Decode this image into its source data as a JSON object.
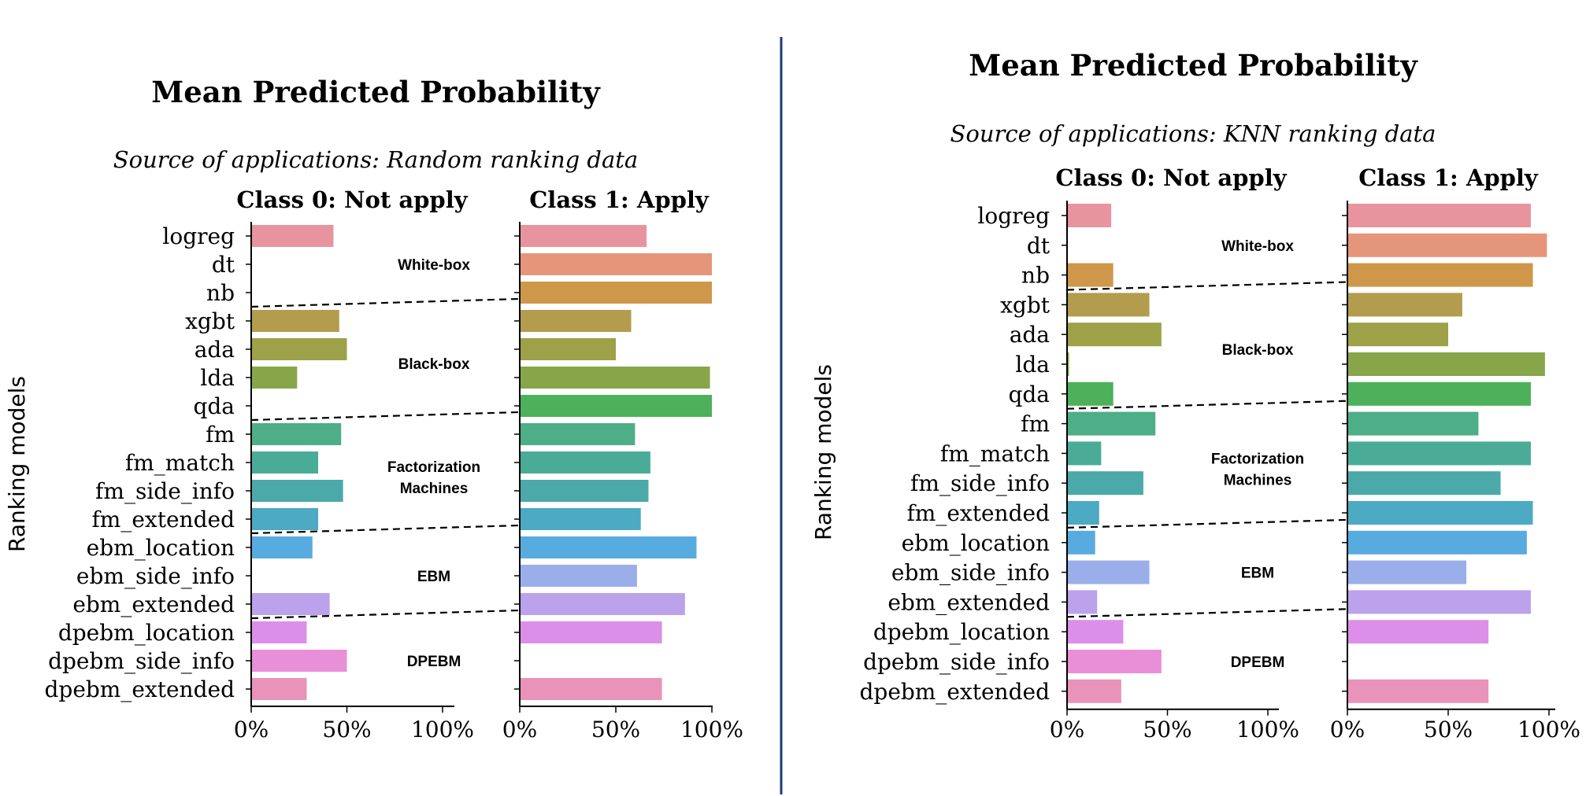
{
  "chart_data": [
    {
      "type": "bar",
      "title": "Mean Predicted Probability",
      "subtitle": "Source of applications: Random ranking data",
      "ylabel": "Ranking models",
      "categories": [
        "logreg",
        "dt",
        "nb",
        "xgbt",
        "ada",
        "lda",
        "qda",
        "fm",
        "fm_match",
        "fm_side_info",
        "fm_extended",
        "ebm_location",
        "ebm_side_info",
        "ebm_extended",
        "dpebm_location",
        "dpebm_side_info",
        "dpebm_extended"
      ],
      "groups": [
        {
          "label": "White-box",
          "members": [
            "logreg",
            "dt",
            "nb"
          ]
        },
        {
          "label": "Black-box",
          "members": [
            "xgbt",
            "ada",
            "lda",
            "qda"
          ]
        },
        {
          "label": "Factorization\nMachines",
          "members": [
            "fm",
            "fm_match",
            "fm_side_info",
            "fm_extended"
          ]
        },
        {
          "label": "EBM",
          "members": [
            "ebm_location",
            "ebm_side_info",
            "ebm_extended"
          ]
        },
        {
          "label": "DPEBM",
          "members": [
            "dpebm_location",
            "dpebm_side_info",
            "dpebm_extended"
          ]
        }
      ],
      "xlim": [
        0,
        1
      ],
      "xticks": [
        "0%",
        "50%",
        "100%"
      ],
      "series": [
        {
          "name": "Class 0: Not apply",
          "values": [
            0.43,
            0.0,
            0.0,
            0.46,
            0.5,
            0.24,
            0.0,
            0.47,
            0.35,
            0.48,
            0.35,
            0.32,
            0.0,
            0.41,
            0.29,
            0.5,
            0.29
          ]
        },
        {
          "name": "Class 1: Apply",
          "values": [
            0.66,
            1.0,
            1.0,
            0.58,
            0.5,
            0.99,
            1.0,
            0.6,
            0.68,
            0.67,
            0.63,
            0.92,
            0.61,
            0.86,
            0.74,
            0.0,
            0.74
          ]
        }
      ]
    },
    {
      "type": "bar",
      "title": "Mean Predicted Probability",
      "subtitle": "Source of applications: KNN ranking data",
      "ylabel": "Ranking models",
      "categories": [
        "logreg",
        "dt",
        "nb",
        "xgbt",
        "ada",
        "lda",
        "qda",
        "fm",
        "fm_match",
        "fm_side_info",
        "fm_extended",
        "ebm_location",
        "ebm_side_info",
        "ebm_extended",
        "dpebm_location",
        "dpebm_side_info",
        "dpebm_extended"
      ],
      "groups": [
        {
          "label": "White-box",
          "members": [
            "logreg",
            "dt",
            "nb"
          ]
        },
        {
          "label": "Black-box",
          "members": [
            "xgbt",
            "ada",
            "lda",
            "qda"
          ]
        },
        {
          "label": "Factorization\nMachines",
          "members": [
            "fm",
            "fm_match",
            "fm_side_info",
            "fm_extended"
          ]
        },
        {
          "label": "EBM",
          "members": [
            "ebm_location",
            "ebm_side_info",
            "ebm_extended"
          ]
        },
        {
          "label": "DPEBM",
          "members": [
            "dpebm_location",
            "dpebm_side_info",
            "dpebm_extended"
          ]
        }
      ],
      "xlim": [
        0,
        1
      ],
      "xticks": [
        "0%",
        "50%",
        "100%"
      ],
      "series": [
        {
          "name": "Class 0: Not apply",
          "values": [
            0.22,
            0.0,
            0.23,
            0.41,
            0.47,
            0.01,
            0.23,
            0.44,
            0.17,
            0.38,
            0.16,
            0.14,
            0.41,
            0.15,
            0.28,
            0.47,
            0.27
          ]
        },
        {
          "name": "Class 1: Apply",
          "values": [
            0.91,
            0.99,
            0.92,
            0.57,
            0.5,
            0.98,
            0.91,
            0.65,
            0.91,
            0.76,
            0.92,
            0.89,
            0.59,
            0.91,
            0.7,
            0.0,
            0.7
          ]
        }
      ]
    }
  ],
  "colors": [
    "#e8949e",
    "#e5967a",
    "#cf9749",
    "#b39c4e",
    "#9da148",
    "#87a64a",
    "#4cb15a",
    "#4dae87",
    "#4aac97",
    "#4ba9a9",
    "#4caac2",
    "#58abdf",
    "#9aaeea",
    "#bba2ea",
    "#dc8fe9",
    "#e98fd7",
    "#e993bb"
  ],
  "divider_color": "#1f3b78"
}
